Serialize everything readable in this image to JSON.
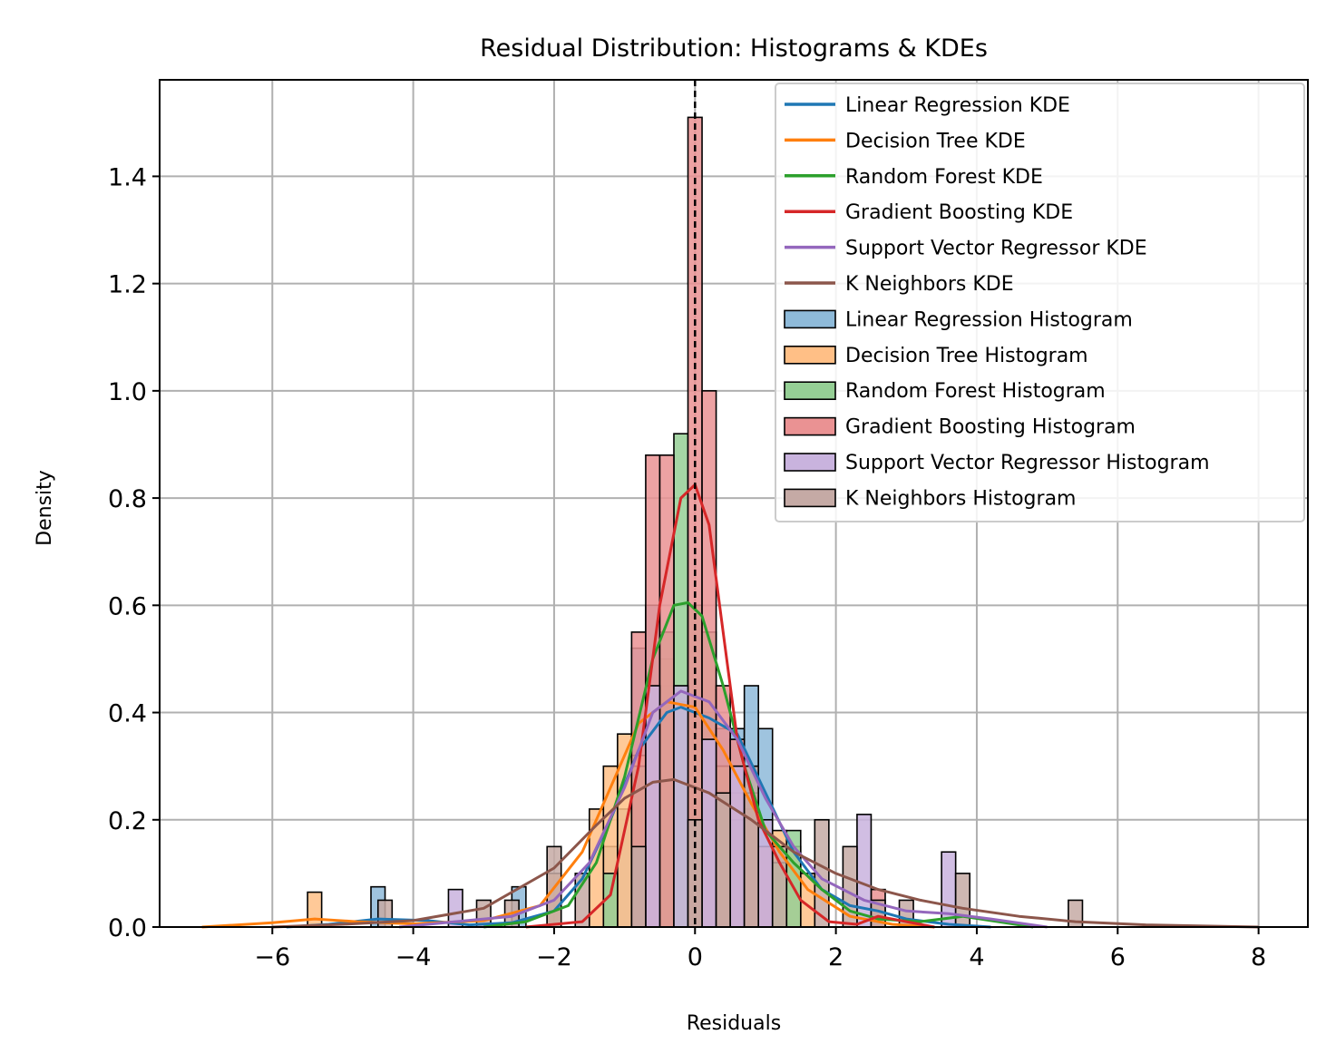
{
  "chart_data": {
    "type": "histogram+kde",
    "title": "Residual Distribution: Histograms & KDEs",
    "xlabel": "Residuals",
    "ylabel": "Density",
    "xlim": [
      -7.6,
      8.7
    ],
    "ylim": [
      0,
      1.58
    ],
    "xticks": [
      -6,
      -4,
      -2,
      0,
      2,
      4,
      6,
      8
    ],
    "xtick_labels": [
      "−6",
      "−4",
      "−2",
      "0",
      "2",
      "4",
      "6",
      "8"
    ],
    "yticks": [
      0.0,
      0.2,
      0.4,
      0.6,
      0.8,
      1.0,
      1.2,
      1.4
    ],
    "ytick_labels": [
      "0.0",
      "0.2",
      "0.4",
      "0.6",
      "0.8",
      "1.0",
      "1.2",
      "1.4"
    ],
    "grid": true,
    "legend_position": "top-right",
    "reference_line": {
      "x": 0,
      "style": "dashed",
      "color": "#000000"
    },
    "series": [
      {
        "name": "Linear Regression",
        "kde_label": "Linear Regression KDE",
        "hist_label": "Linear Regression Histogram",
        "color": "#1f77b4",
        "hist_color": "#8ebad9",
        "kde": [
          [
            -5.8,
            0.0
          ],
          [
            -5.2,
            0.005
          ],
          [
            -4.5,
            0.015
          ],
          [
            -3.8,
            0.012
          ],
          [
            -3.2,
            0.004
          ],
          [
            -2.6,
            0.008
          ],
          [
            -2.0,
            0.03
          ],
          [
            -1.6,
            0.09
          ],
          [
            -1.2,
            0.2
          ],
          [
            -0.8,
            0.33
          ],
          [
            -0.4,
            0.4
          ],
          [
            -0.2,
            0.41
          ],
          [
            0.2,
            0.39
          ],
          [
            0.6,
            0.36
          ],
          [
            1.0,
            0.25
          ],
          [
            1.4,
            0.14
          ],
          [
            1.8,
            0.07
          ],
          [
            2.2,
            0.04
          ],
          [
            2.6,
            0.03
          ],
          [
            3.0,
            0.015
          ],
          [
            3.6,
            0.005
          ],
          [
            4.2,
            0.0
          ]
        ],
        "hist": [
          [
            -4.5,
            0.075
          ],
          [
            -2.5,
            0.075
          ],
          [
            -1.2,
            0.15
          ],
          [
            -1.0,
            0.22
          ],
          [
            -0.8,
            0.52
          ],
          [
            -0.6,
            0.6
          ],
          [
            -0.4,
            0.45
          ],
          [
            -0.2,
            0.45
          ],
          [
            0.0,
            0.35
          ],
          [
            0.2,
            0.4
          ],
          [
            0.4,
            0.37
          ],
          [
            0.6,
            0.37
          ],
          [
            0.8,
            0.45
          ],
          [
            1.0,
            0.37
          ],
          [
            1.2,
            0.1
          ]
        ]
      },
      {
        "name": "Decision Tree",
        "kde_label": "Decision Tree KDE",
        "hist_label": "Decision Tree Histogram",
        "color": "#ff7f0e",
        "hist_color": "#ffbf86",
        "kde": [
          [
            -7.0,
            0.0
          ],
          [
            -6.0,
            0.008
          ],
          [
            -5.4,
            0.015
          ],
          [
            -4.8,
            0.01
          ],
          [
            -4.0,
            0.006
          ],
          [
            -3.0,
            0.012
          ],
          [
            -2.2,
            0.04
          ],
          [
            -1.6,
            0.14
          ],
          [
            -1.2,
            0.26
          ],
          [
            -0.8,
            0.38
          ],
          [
            -0.4,
            0.42
          ],
          [
            0.0,
            0.41
          ],
          [
            0.4,
            0.33
          ],
          [
            0.8,
            0.23
          ],
          [
            1.2,
            0.14
          ],
          [
            1.6,
            0.07
          ],
          [
            2.2,
            0.02
          ],
          [
            2.8,
            0.005
          ],
          [
            3.4,
            0.0
          ]
        ],
        "hist": [
          [
            -5.4,
            0.065
          ],
          [
            -2.0,
            0.1
          ],
          [
            -1.4,
            0.22
          ],
          [
            -1.2,
            0.3
          ],
          [
            -1.0,
            0.36
          ],
          [
            -0.8,
            0.32
          ],
          [
            -0.6,
            0.45
          ],
          [
            -0.4,
            0.5
          ],
          [
            -0.2,
            0.42
          ],
          [
            0.0,
            0.4
          ],
          [
            0.2,
            0.35
          ],
          [
            0.4,
            0.3
          ],
          [
            0.6,
            0.25
          ],
          [
            0.8,
            0.22
          ],
          [
            1.0,
            0.15
          ],
          [
            1.2,
            0.18
          ],
          [
            1.4,
            0.15
          ],
          [
            1.6,
            0.1
          ]
        ]
      },
      {
        "name": "Random Forest",
        "kde_label": "Random Forest KDE",
        "hist_label": "Random Forest Histogram",
        "color": "#2ca02c",
        "hist_color": "#95cf95",
        "kde": [
          [
            -3.0,
            0.0
          ],
          [
            -2.4,
            0.01
          ],
          [
            -1.8,
            0.04
          ],
          [
            -1.4,
            0.12
          ],
          [
            -1.0,
            0.28
          ],
          [
            -0.6,
            0.5
          ],
          [
            -0.3,
            0.6
          ],
          [
            -0.1,
            0.605
          ],
          [
            0.1,
            0.58
          ],
          [
            0.4,
            0.45
          ],
          [
            0.7,
            0.3
          ],
          [
            1.0,
            0.18
          ],
          [
            1.4,
            0.12
          ],
          [
            1.8,
            0.07
          ],
          [
            2.2,
            0.03
          ],
          [
            2.6,
            0.015
          ],
          [
            3.2,
            0.01
          ],
          [
            3.8,
            0.02
          ],
          [
            4.2,
            0.012
          ],
          [
            4.8,
            0.0
          ]
        ],
        "hist": [
          [
            -1.2,
            0.1
          ],
          [
            -0.8,
            0.3
          ],
          [
            -0.4,
            0.55
          ],
          [
            -0.2,
            0.92
          ],
          [
            0.0,
            0.6
          ],
          [
            0.2,
            0.55
          ],
          [
            0.4,
            0.3
          ],
          [
            0.6,
            0.2
          ],
          [
            0.8,
            0.2
          ],
          [
            1.0,
            0.15
          ],
          [
            1.2,
            0.12
          ],
          [
            1.4,
            0.18
          ]
        ]
      },
      {
        "name": "Gradient Boosting",
        "kde_label": "Gradient Boosting KDE",
        "hist_label": "Gradient Boosting Histogram",
        "color": "#d62728",
        "hist_color": "#ea9293",
        "kde": [
          [
            -2.4,
            0.0
          ],
          [
            -1.6,
            0.01
          ],
          [
            -1.2,
            0.06
          ],
          [
            -0.8,
            0.3
          ],
          [
            -0.5,
            0.6
          ],
          [
            -0.2,
            0.8
          ],
          [
            0.0,
            0.825
          ],
          [
            0.2,
            0.75
          ],
          [
            0.4,
            0.55
          ],
          [
            0.6,
            0.35
          ],
          [
            0.9,
            0.2
          ],
          [
            1.2,
            0.12
          ],
          [
            1.5,
            0.05
          ],
          [
            1.9,
            0.01
          ],
          [
            2.3,
            0.005
          ],
          [
            2.6,
            0.02
          ],
          [
            3.0,
            0.01
          ],
          [
            3.4,
            0.0
          ]
        ],
        "hist": [
          [
            -0.8,
            0.55
          ],
          [
            -0.6,
            0.88
          ],
          [
            -0.4,
            0.88
          ],
          [
            0.0,
            1.51
          ],
          [
            0.2,
            1.0
          ],
          [
            0.4,
            0.45
          ],
          [
            0.6,
            0.35
          ],
          [
            0.8,
            0.25
          ],
          [
            1.0,
            0.15
          ],
          [
            2.6,
            0.07
          ]
        ]
      },
      {
        "name": "Support Vector Regressor",
        "kde_label": "Support Vector Regressor KDE",
        "hist_label": "Support Vector Regressor Histogram",
        "color": "#9467bd",
        "hist_color": "#c9b3de",
        "kde": [
          [
            -4.2,
            0.0
          ],
          [
            -3.4,
            0.01
          ],
          [
            -2.6,
            0.02
          ],
          [
            -2.0,
            0.05
          ],
          [
            -1.5,
            0.12
          ],
          [
            -1.0,
            0.26
          ],
          [
            -0.6,
            0.4
          ],
          [
            -0.2,
            0.44
          ],
          [
            0.2,
            0.42
          ],
          [
            0.6,
            0.35
          ],
          [
            1.0,
            0.24
          ],
          [
            1.4,
            0.15
          ],
          [
            1.8,
            0.09
          ],
          [
            2.4,
            0.05
          ],
          [
            3.0,
            0.03
          ],
          [
            3.6,
            0.025
          ],
          [
            4.2,
            0.015
          ],
          [
            5.0,
            0.0
          ]
        ],
        "hist": [
          [
            -3.4,
            0.07
          ],
          [
            -0.6,
            0.45
          ],
          [
            -0.2,
            0.45
          ],
          [
            0.2,
            0.35
          ],
          [
            0.6,
            0.3
          ],
          [
            1.0,
            0.2
          ],
          [
            2.4,
            0.21
          ],
          [
            3.6,
            0.14
          ]
        ]
      },
      {
        "name": "K Neighbors",
        "kde_label": "K Neighbors KDE",
        "hist_label": "K Neighbors Histogram",
        "color": "#8c564b",
        "hist_color": "#c5aaa5",
        "kde": [
          [
            -6.0,
            0.0
          ],
          [
            -5.0,
            0.005
          ],
          [
            -4.0,
            0.012
          ],
          [
            -3.0,
            0.035
          ],
          [
            -2.0,
            0.11
          ],
          [
            -1.4,
            0.19
          ],
          [
            -1.0,
            0.24
          ],
          [
            -0.6,
            0.27
          ],
          [
            -0.3,
            0.275
          ],
          [
            0.2,
            0.25
          ],
          [
            0.8,
            0.2
          ],
          [
            1.4,
            0.14
          ],
          [
            2.0,
            0.1
          ],
          [
            2.6,
            0.07
          ],
          [
            3.2,
            0.05
          ],
          [
            3.8,
            0.035
          ],
          [
            4.6,
            0.02
          ],
          [
            5.4,
            0.01
          ],
          [
            6.4,
            0.004
          ],
          [
            8.0,
            0.0
          ]
        ],
        "hist": [
          [
            -4.4,
            0.05
          ],
          [
            -3.0,
            0.05
          ],
          [
            -2.6,
            0.05
          ],
          [
            -2.0,
            0.15
          ],
          [
            -1.6,
            0.1
          ],
          [
            -0.8,
            0.15
          ],
          [
            0.0,
            0.2
          ],
          [
            0.4,
            0.25
          ],
          [
            0.8,
            0.3
          ],
          [
            1.2,
            0.15
          ],
          [
            1.8,
            0.2
          ],
          [
            2.2,
            0.15
          ],
          [
            2.6,
            0.05
          ],
          [
            3.0,
            0.05
          ],
          [
            3.8,
            0.1
          ],
          [
            5.4,
            0.05
          ]
        ]
      }
    ]
  }
}
